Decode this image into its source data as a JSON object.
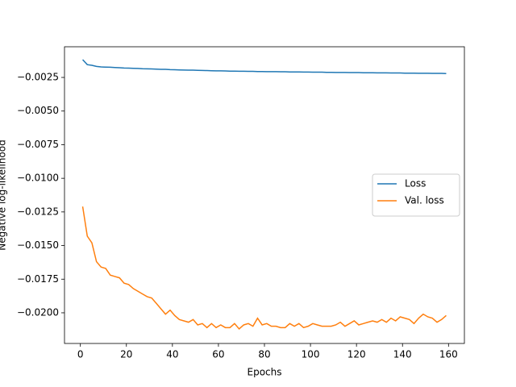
{
  "chart_data": {
    "type": "line",
    "xlabel": "Epochs",
    "ylabel": "Negative log-likelihood",
    "x": [
      1,
      3,
      5,
      7,
      9,
      11,
      13,
      15,
      17,
      19,
      21,
      23,
      25,
      27,
      29,
      31,
      33,
      35,
      37,
      39,
      41,
      43,
      45,
      47,
      49,
      51,
      53,
      55,
      57,
      59,
      61,
      63,
      65,
      67,
      69,
      71,
      73,
      75,
      77,
      79,
      81,
      83,
      85,
      87,
      89,
      91,
      93,
      95,
      97,
      99,
      101,
      103,
      105,
      107,
      109,
      111,
      113,
      115,
      117,
      119,
      121,
      123,
      125,
      127,
      129,
      131,
      133,
      135,
      137,
      139,
      141,
      143,
      145,
      147,
      149,
      151,
      153,
      155,
      157,
      159
    ],
    "series": [
      {
        "name": "Loss",
        "color": "#1f77b4",
        "values": [
          -0.00118,
          -0.00155,
          -0.0016,
          -0.00168,
          -0.00172,
          -0.00173,
          -0.00174,
          -0.00176,
          -0.00178,
          -0.0018,
          -0.00181,
          -0.00182,
          -0.00183,
          -0.00185,
          -0.00186,
          -0.00187,
          -0.00188,
          -0.0019,
          -0.0019,
          -0.00192,
          -0.00193,
          -0.00194,
          -0.00195,
          -0.00196,
          -0.00196,
          -0.00197,
          -0.00198,
          -0.00199,
          -0.002,
          -0.00201,
          -0.00201,
          -0.00202,
          -0.00203,
          -0.00203,
          -0.00204,
          -0.00204,
          -0.00205,
          -0.00205,
          -0.00206,
          -0.00206,
          -0.00207,
          -0.00207,
          -0.00207,
          -0.00208,
          -0.00208,
          -0.00209,
          -0.00209,
          -0.00209,
          -0.0021,
          -0.0021,
          -0.00211,
          -0.00211,
          -0.00211,
          -0.00212,
          -0.00212,
          -0.00213,
          -0.00213,
          -0.00213,
          -0.00214,
          -0.00214,
          -0.00214,
          -0.00215,
          -0.00215,
          -0.00215,
          -0.00216,
          -0.00216,
          -0.00216,
          -0.00217,
          -0.00217,
          -0.00217,
          -0.00218,
          -0.00218,
          -0.00218,
          -0.00219,
          -0.00219,
          -0.00219,
          -0.0022,
          -0.0022,
          -0.0022,
          -0.00221
        ]
      },
      {
        "name": "Val. loss",
        "color": "#ff7f0e",
        "values": [
          -0.0121,
          -0.0143,
          -0.0148,
          -0.0162,
          -0.0166,
          -0.0167,
          -0.0172,
          -0.0173,
          -0.0174,
          -0.0178,
          -0.0179,
          -0.0182,
          -0.0184,
          -0.0186,
          -0.0188,
          -0.0189,
          -0.0193,
          -0.0197,
          -0.0201,
          -0.0198,
          -0.0202,
          -0.0205,
          -0.0206,
          -0.0207,
          -0.0205,
          -0.0209,
          -0.0208,
          -0.0211,
          -0.0208,
          -0.0211,
          -0.0209,
          -0.0211,
          -0.0211,
          -0.0208,
          -0.0212,
          -0.0209,
          -0.0208,
          -0.021,
          -0.0204,
          -0.0209,
          -0.0208,
          -0.021,
          -0.021,
          -0.0211,
          -0.0211,
          -0.0208,
          -0.021,
          -0.0208,
          -0.0211,
          -0.021,
          -0.0208,
          -0.0209,
          -0.021,
          -0.021,
          -0.021,
          -0.0209,
          -0.0207,
          -0.021,
          -0.0208,
          -0.0206,
          -0.0209,
          -0.0208,
          -0.0207,
          -0.0206,
          -0.0207,
          -0.0205,
          -0.0207,
          -0.0204,
          -0.0206,
          -0.0203,
          -0.0204,
          -0.0205,
          -0.0208,
          -0.0204,
          -0.0201,
          -0.0203,
          -0.0204,
          -0.0207,
          -0.0205,
          -0.0202
        ]
      }
    ],
    "xlim": [
      -6.9,
      166.9
    ],
    "xticks": [
      0,
      20,
      40,
      60,
      80,
      100,
      120,
      140,
      160
    ],
    "ylim": [
      -0.02228,
      -0.00022
    ],
    "yticks": [
      {
        "value": -0.0025,
        "label": "−0.0025"
      },
      {
        "value": -0.005,
        "label": "−0.0050"
      },
      {
        "value": -0.0075,
        "label": "−0.0075"
      },
      {
        "value": -0.01,
        "label": "−0.0100"
      },
      {
        "value": -0.0125,
        "label": "−0.0125"
      },
      {
        "value": -0.015,
        "label": "−0.0150"
      },
      {
        "value": -0.0175,
        "label": "−0.0175"
      },
      {
        "value": -0.02,
        "label": "−0.0200"
      }
    ],
    "grid": false,
    "legend": "center right"
  }
}
